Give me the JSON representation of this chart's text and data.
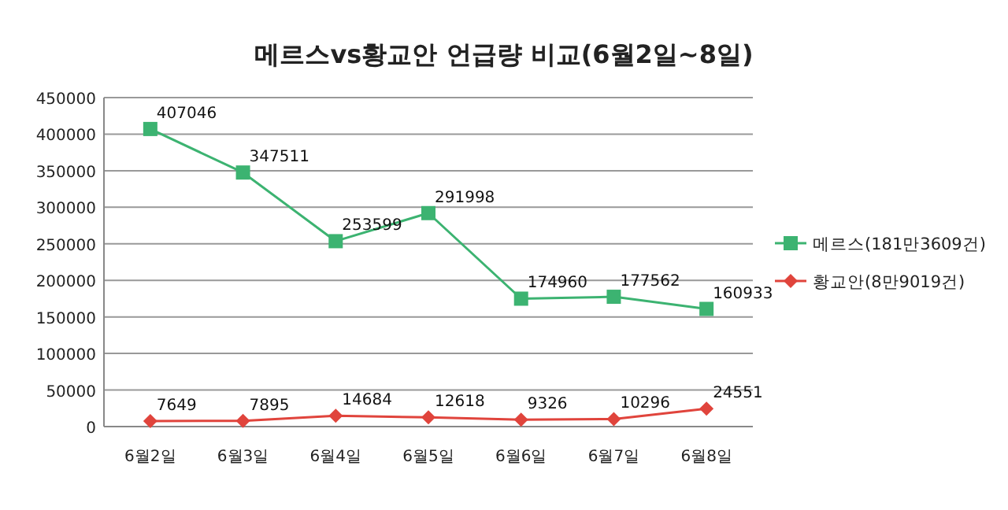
{
  "chart_data": {
    "type": "line",
    "title": "메르스vs황교안 언급량 비교(6월2일~8일)",
    "categories": [
      "6월2일",
      "6월3일",
      "6월4일",
      "6월5일",
      "6월6일",
      "6월7일",
      "6월8일"
    ],
    "series": [
      {
        "name": "메르스(181만3609건)",
        "color": "#3cb371",
        "marker": "square",
        "values": [
          407046,
          347511,
          253599,
          291998,
          174960,
          177562,
          160933
        ]
      },
      {
        "name": "황교안(8만9019건)",
        "color": "#e0443c",
        "marker": "diamond",
        "values": [
          7649,
          7895,
          14684,
          12618,
          9326,
          10296,
          24551
        ]
      }
    ],
    "ylim": [
      0,
      450000
    ],
    "yticks": [
      0,
      50000,
      100000,
      150000,
      200000,
      250000,
      300000,
      350000,
      400000,
      450000
    ],
    "grid": "y",
    "legend": "right",
    "data_labels": true
  }
}
